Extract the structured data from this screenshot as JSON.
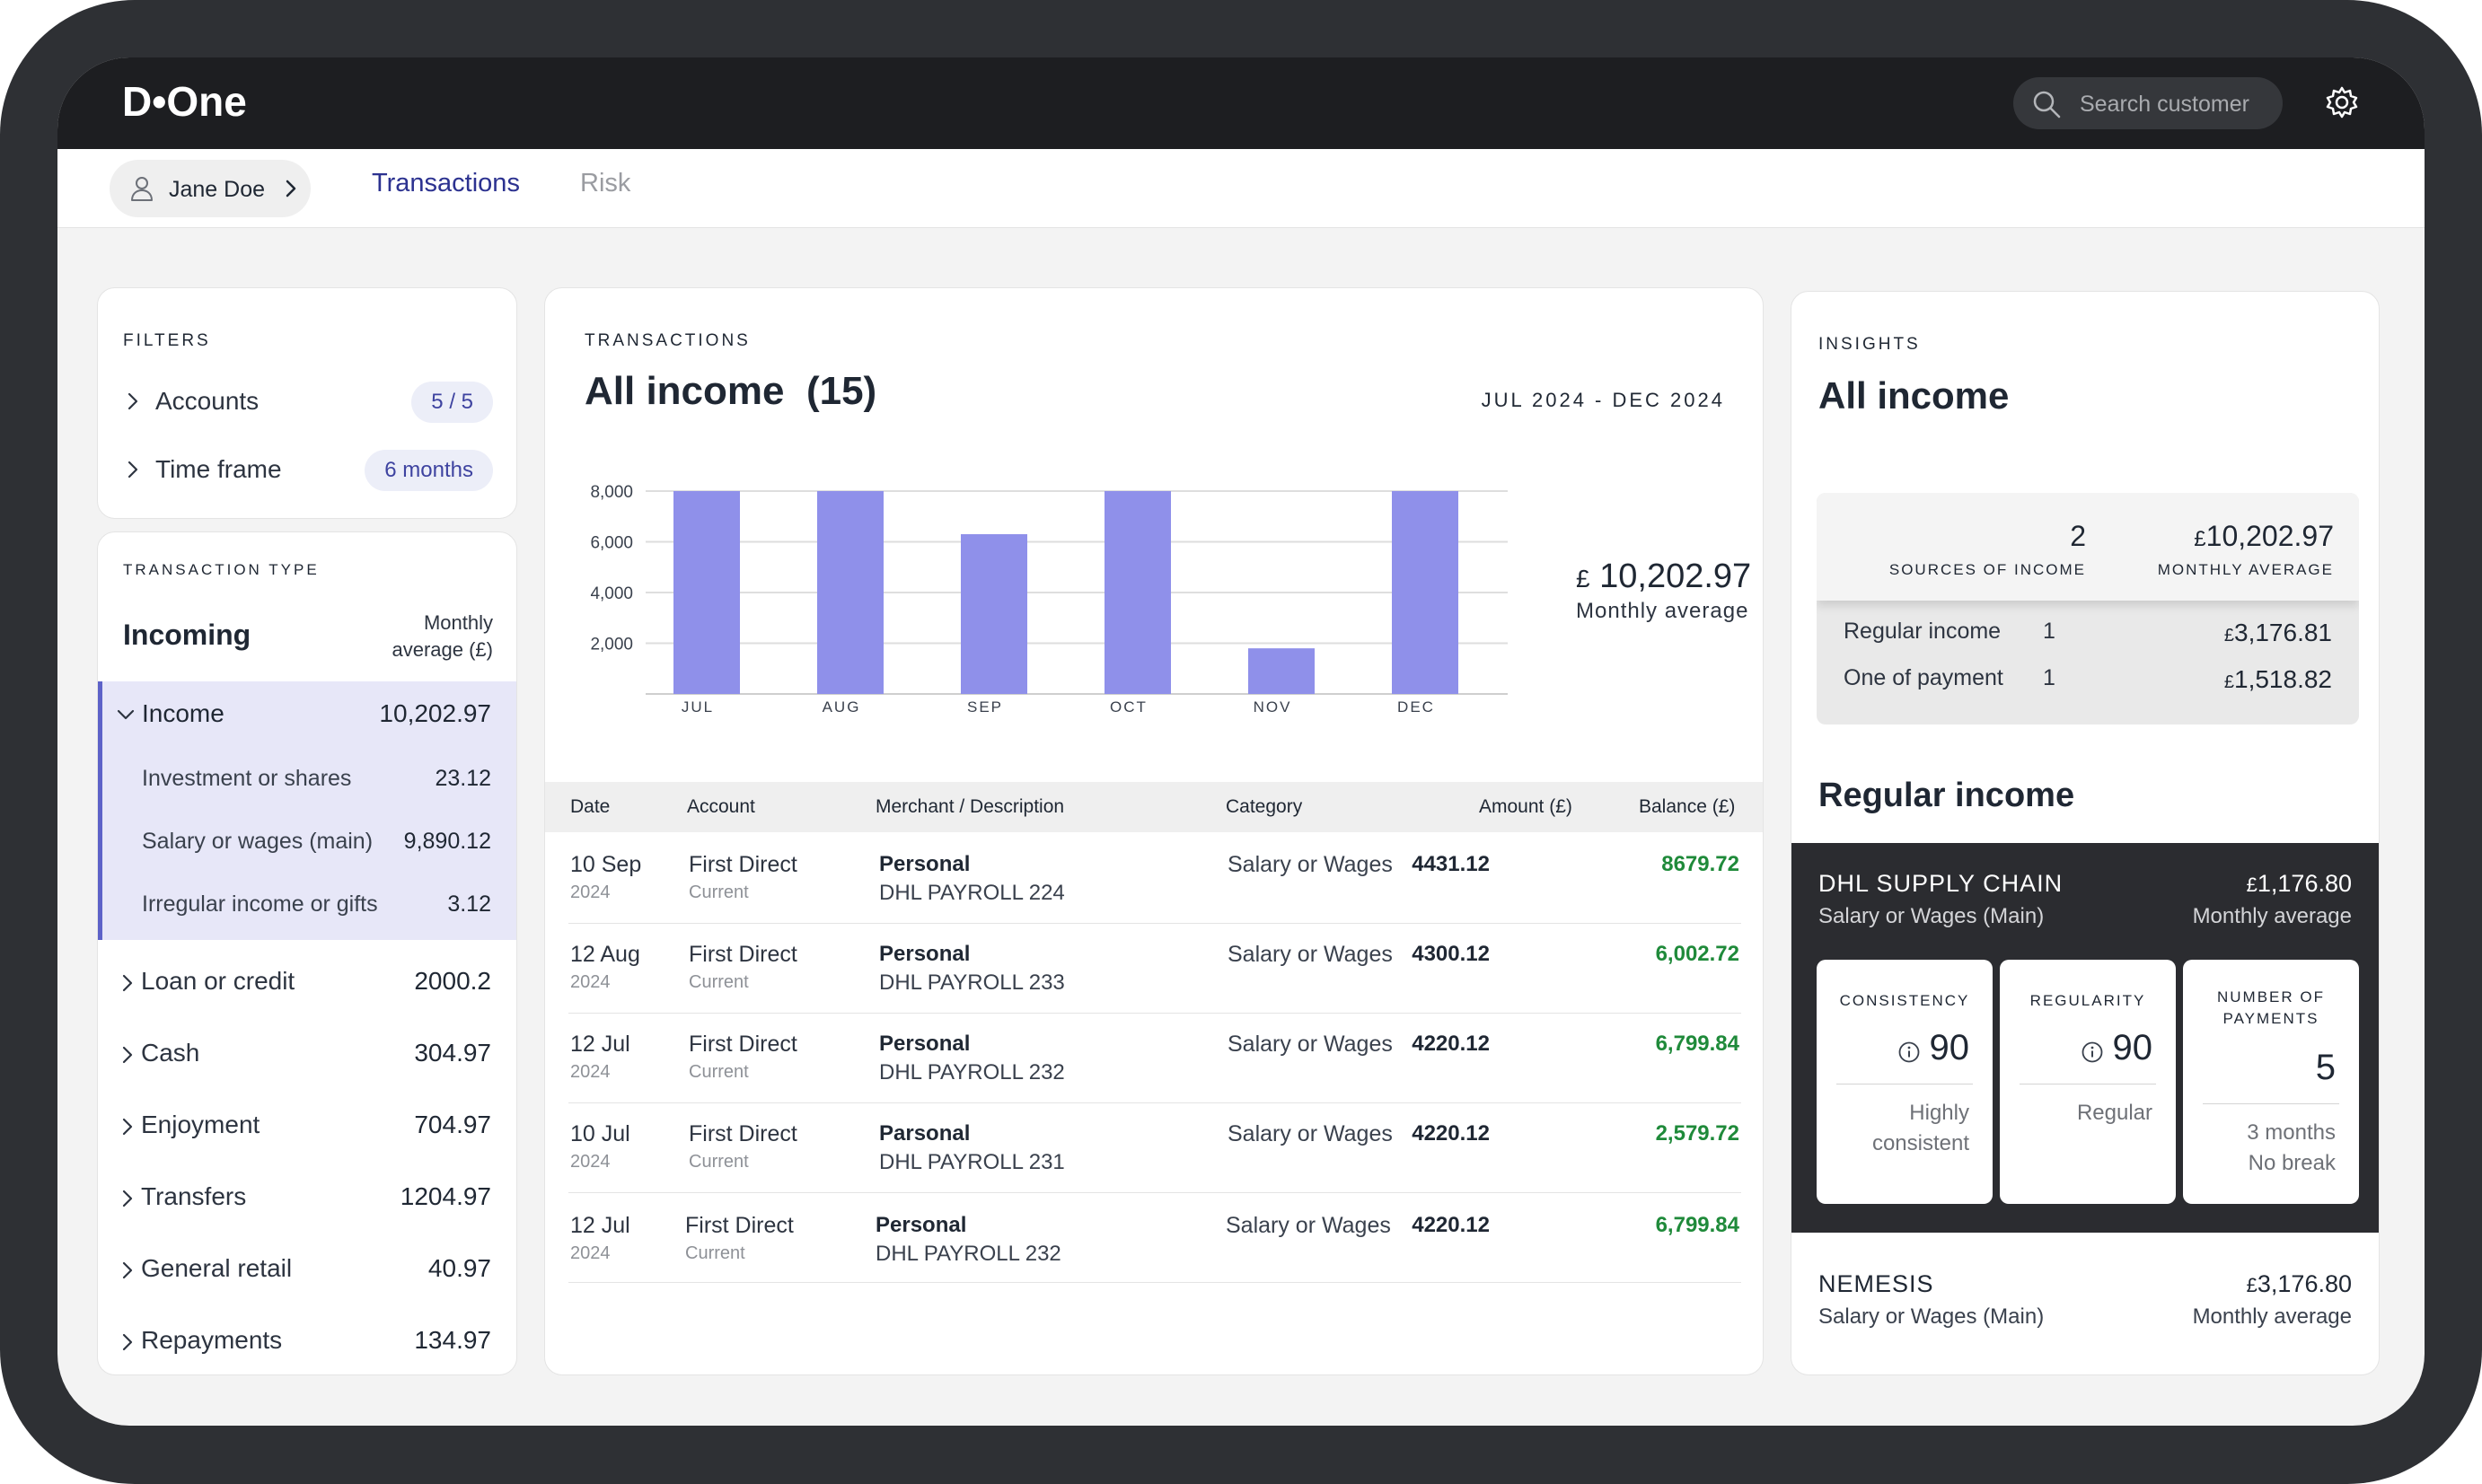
{
  "app": {
    "logo": "D•One"
  },
  "header": {
    "search_placeholder": "Search customer"
  },
  "subnav": {
    "user_name": "Jane Doe",
    "tabs": [
      {
        "label": "Transactions",
        "active": true
      },
      {
        "label": "Risk",
        "active": false
      }
    ]
  },
  "filters": {
    "title": "FILTERS",
    "items": [
      {
        "label": "Accounts",
        "badge": "5 / 5"
      },
      {
        "label": "Time frame",
        "badge": "6 months"
      }
    ]
  },
  "transaction_type": {
    "title": "TRANSACTION TYPE",
    "heading": "Incoming",
    "column_label_1": "Monthly",
    "column_label_2": "average (£)",
    "income": {
      "label": "Income",
      "value": "10,202.97",
      "children": [
        {
          "label": "Investment or shares",
          "value": "23.12"
        },
        {
          "label": "Salary or wages (main)",
          "value": "9,890.12"
        },
        {
          "label": "Irregular income or gifts",
          "value": "3.12"
        }
      ]
    },
    "others": [
      {
        "label": "Loan or credit",
        "value": "2000.2"
      },
      {
        "label": "Cash",
        "value": "304.97"
      },
      {
        "label": "Enjoyment",
        "value": "704.97"
      },
      {
        "label": "Transfers",
        "value": "1204.97"
      },
      {
        "label": "General retail",
        "value": "40.97"
      },
      {
        "label": "Repayments",
        "value": "134.97"
      }
    ]
  },
  "transactions": {
    "title": "TRANSACTIONS",
    "heading": "All income",
    "count": "(15)",
    "range": "JUL 2024 - DEC 2024",
    "average_currency": "£",
    "average_value": "10,202.97",
    "average_label": "Monthly average",
    "columns": [
      "Date",
      "Account",
      "Merchant / Description",
      "Category",
      "Amount (£)",
      "Balance (£)"
    ],
    "rows": [
      {
        "day": "10 Sep",
        "year": "2024",
        "account": "First Direct",
        "account_type": "Current",
        "merchant": "Personal",
        "description": "DHL PAYROLL 224",
        "category": "Salary or Wages",
        "amount": "4431.12",
        "balance": "8679.72"
      },
      {
        "day": "12 Aug",
        "year": "2024",
        "account": "First Direct",
        "account_type": "Current",
        "merchant": "Personal",
        "description": "DHL PAYROLL 233",
        "category": "Salary or Wages",
        "amount": "4300.12",
        "balance": "6,002.72"
      },
      {
        "day": "12 Jul",
        "year": "2024",
        "account": "First Direct",
        "account_type": "Current",
        "merchant": "Personal",
        "description": "DHL PAYROLL 232",
        "category": "Salary or Wages",
        "amount": "4220.12",
        "balance": "6,799.84"
      },
      {
        "day": "10 Jul",
        "year": "2024",
        "account": "First Direct",
        "account_type": "Current",
        "merchant": "Parsonal",
        "description": "DHL PAYROLL 231",
        "category": "Salary or Wages",
        "amount": "4220.12",
        "balance": "2,579.72"
      },
      {
        "day": "12 Jul",
        "year": "2024",
        "account": "First Direct",
        "account_type": "Current",
        "merchant": "Personal",
        "description": "DHL PAYROLL 232",
        "category": "Salary or Wages",
        "amount": "4220.12",
        "balance": "6,799.84"
      }
    ]
  },
  "chart_data": {
    "type": "bar",
    "categories": [
      "JUL",
      "AUG",
      "SEP",
      "OCT",
      "NOV",
      "DEC"
    ],
    "values": [
      8000,
      8000,
      6300,
      8000,
      1800,
      8000
    ],
    "yticks": [
      "2,000",
      "4,000",
      "6,000",
      "8,000"
    ],
    "ytick_values": [
      2000,
      4000,
      6000,
      8000
    ],
    "ylim": [
      0,
      8000
    ],
    "bar_color": "#8f90ea",
    "grid": true
  },
  "insights": {
    "title": "INSIGHTS",
    "heading": "All income",
    "sources_count": "2",
    "sources_label": "SOURCES OF INCOME",
    "monthly_currency": "£",
    "monthly_value": "10,202.97",
    "monthly_label": "MONTHLY AVERAGE",
    "breakdown": [
      {
        "label": "Regular income",
        "count": "1",
        "currency": "£",
        "value": "3,176.81"
      },
      {
        "label": "One of payment",
        "count": "1",
        "currency": "£",
        "value": "1,518.82"
      }
    ],
    "regular_heading": "Regular income",
    "sources": [
      {
        "name": "DHL SUPPLY CHAIN",
        "type": "Salary or Wages (Main)",
        "currency": "£",
        "amount": "1,176.80",
        "amount_label": "Monthly average",
        "metrics": [
          {
            "label_1": "CONSISTENCY",
            "label_2": "",
            "value": "90",
            "desc_1": "Highly",
            "desc_2": "consistent"
          },
          {
            "label_1": "REGULARITY",
            "label_2": "",
            "value": "90",
            "desc_1": "Regular",
            "desc_2": ""
          },
          {
            "label_1": "NUMBER OF",
            "label_2": "PAYMENTS",
            "value": "5",
            "desc_1": "3 months",
            "desc_2": "No break"
          }
        ]
      },
      {
        "name": "NEMESIS",
        "type": "Salary or Wages (Main)",
        "currency": "£",
        "amount": "3,176.80",
        "amount_label": "Monthly average"
      }
    ]
  }
}
